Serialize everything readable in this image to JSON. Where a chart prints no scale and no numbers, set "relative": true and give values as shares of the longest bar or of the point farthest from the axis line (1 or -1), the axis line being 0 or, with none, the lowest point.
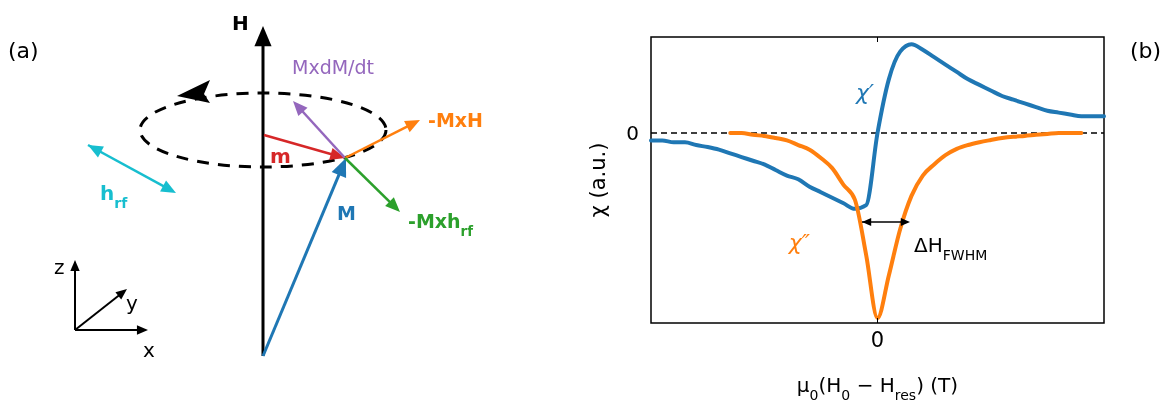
{
  "chart_data": [
    {
      "type": "other",
      "annotations": [
        "(a)",
        "H",
        "MxdM/dt",
        "-MxH",
        "m",
        "M",
        "-Mxh$_{rf}$",
        "h$_{rf}$",
        "z",
        "y",
        "x"
      ]
    },
    {
      "type": "line",
      "relative": true,
      "xlabel": "μ$_{0}$(H$_{0}$ − H$_{res}$) (T)",
      "ylabel": "χ (a.u.)",
      "annotations": [
        "(b)",
        "ΔH$_{FWHM}$",
        "0"
      ],
      "categories": [
        null,
        null,
        null,
        null,
        null,
        null,
        null,
        null,
        null,
        null,
        null,
        null,
        null,
        null,
        null,
        null,
        null,
        null,
        null,
        null,
        null,
        null,
        null,
        null,
        null,
        null,
        null,
        null,
        null,
        null,
        null,
        null,
        null,
        null,
        null,
        null,
        null,
        null,
        null,
        null,
        null
      ],
      "ref_lines": [
        {
          "axis": "y",
          "value": 0,
          "label": "0",
          "line_style": "dashed",
          "color": "#000000"
        }
      ],
      "series": [
        {
          "name": "χ′",
          "color": "#1f77b4",
          "values": [
            -0.04,
            -0.04,
            -0.05,
            -0.05,
            -0.065,
            -0.076,
            -0.09,
            -0.11,
            -0.13,
            -0.15,
            -0.17,
            -0.2,
            -0.23,
            -0.25,
            -0.29,
            -0.32,
            -0.35,
            -0.38,
            -0.41,
            -0.39,
            0,
            0.29,
            0.44,
            0.48,
            0.45,
            0.41,
            0.37,
            0.33,
            0.29,
            0.26,
            0.23,
            0.2,
            0.18,
            0.16,
            0.14,
            0.12,
            0.11,
            0.1,
            0.09,
            0.09,
            0.09
          ]
        },
        {
          "name": "χ″",
          "color": "#ff7f0e",
          "values": [
            null,
            null,
            null,
            null,
            null,
            null,
            null,
            0,
            0,
            -0.01,
            -0.016,
            -0.027,
            -0.04,
            -0.065,
            -0.09,
            -0.135,
            -0.19,
            -0.28,
            -0.36,
            -0.66,
            -1,
            -0.77,
            -0.52,
            -0.34,
            -0.23,
            -0.17,
            -0.12,
            -0.086,
            -0.065,
            -0.05,
            -0.038,
            -0.027,
            -0.02,
            -0.016,
            -0.01,
            -0.005,
            0,
            0,
            0,
            null,
            null
          ]
        }
      ]
    }
  ]
}
